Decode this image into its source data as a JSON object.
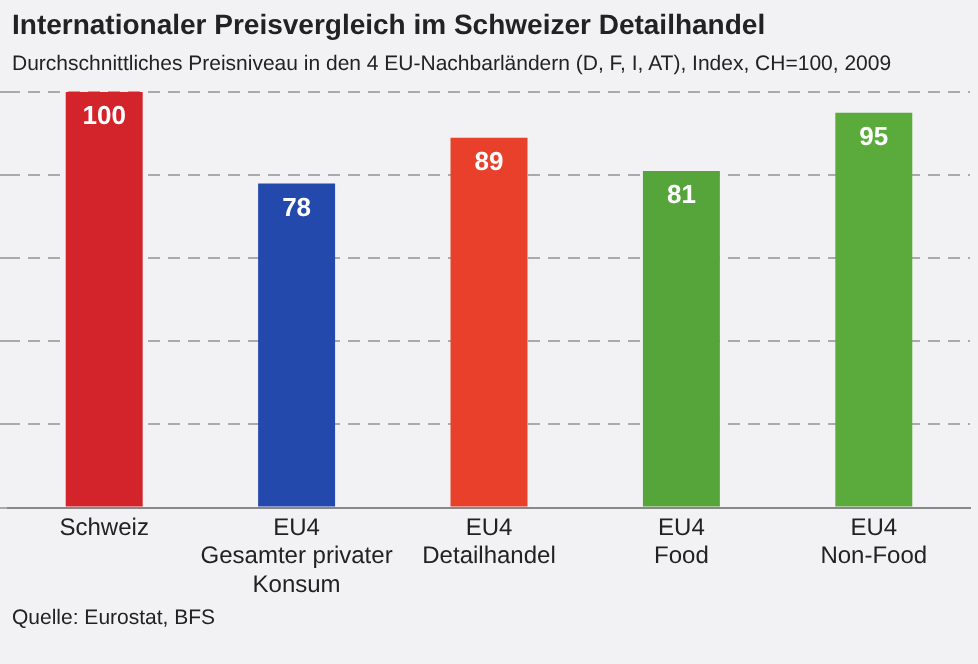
{
  "chart_data": {
    "type": "bar",
    "title": "Internationaler Preisvergleich im Schweizer Detailhandel",
    "subtitle": "Durchschnittliches Preisniveau in den 4 EU-Nachbarländern (D, F, I, AT), Index, CH=100, 2009",
    "categories": [
      "Schweiz",
      "EU4\nGesamter privater\nKonsum",
      "EU4\nDetailhandel",
      "EU4\nFood",
      "EU4\nNon-Food"
    ],
    "values": [
      100,
      78,
      89,
      81,
      95
    ],
    "colors": [
      "#d3232b",
      "#2349ad",
      "#e8402a",
      "#56a53a",
      "#5aab3c"
    ],
    "ylim": [
      0,
      100
    ],
    "yticks": [
      {
        "value": 0,
        "label": null
      },
      {
        "value": 20,
        "label": null
      },
      {
        "value": 40,
        "label": null
      },
      {
        "value": 60,
        "label": null
      },
      {
        "value": 80,
        "label": null
      },
      {
        "value": 100,
        "label": null
      }
    ],
    "grid": "y",
    "data_labels": true,
    "tick_labels": "x",
    "annotations": [
      "Quelle: Eurostat, BFS"
    ]
  }
}
